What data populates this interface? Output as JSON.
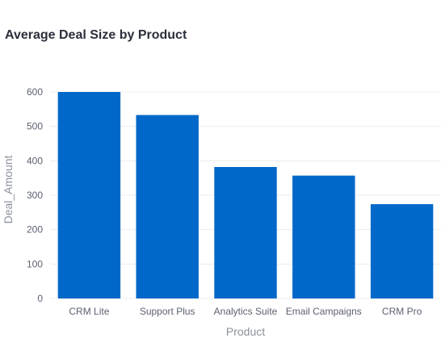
{
  "chart_data": {
    "type": "bar",
    "title": "Average Deal Size by Product",
    "xlabel": "Product",
    "ylabel": "Deal_Amount",
    "categories": [
      "CRM Lite",
      "Support Plus",
      "Analytics Suite",
      "Email Campaigns",
      "CRM Pro"
    ],
    "values": [
      600,
      533,
      382,
      357,
      274
    ],
    "ylim": [
      0,
      600
    ],
    "yticks": [
      0,
      100,
      200,
      300,
      400,
      500,
      600
    ],
    "grid": true,
    "legend": "none",
    "colors": {
      "bar": "#0068c9",
      "grid": "#e9ecef",
      "title": "#2a2f3a"
    }
  }
}
